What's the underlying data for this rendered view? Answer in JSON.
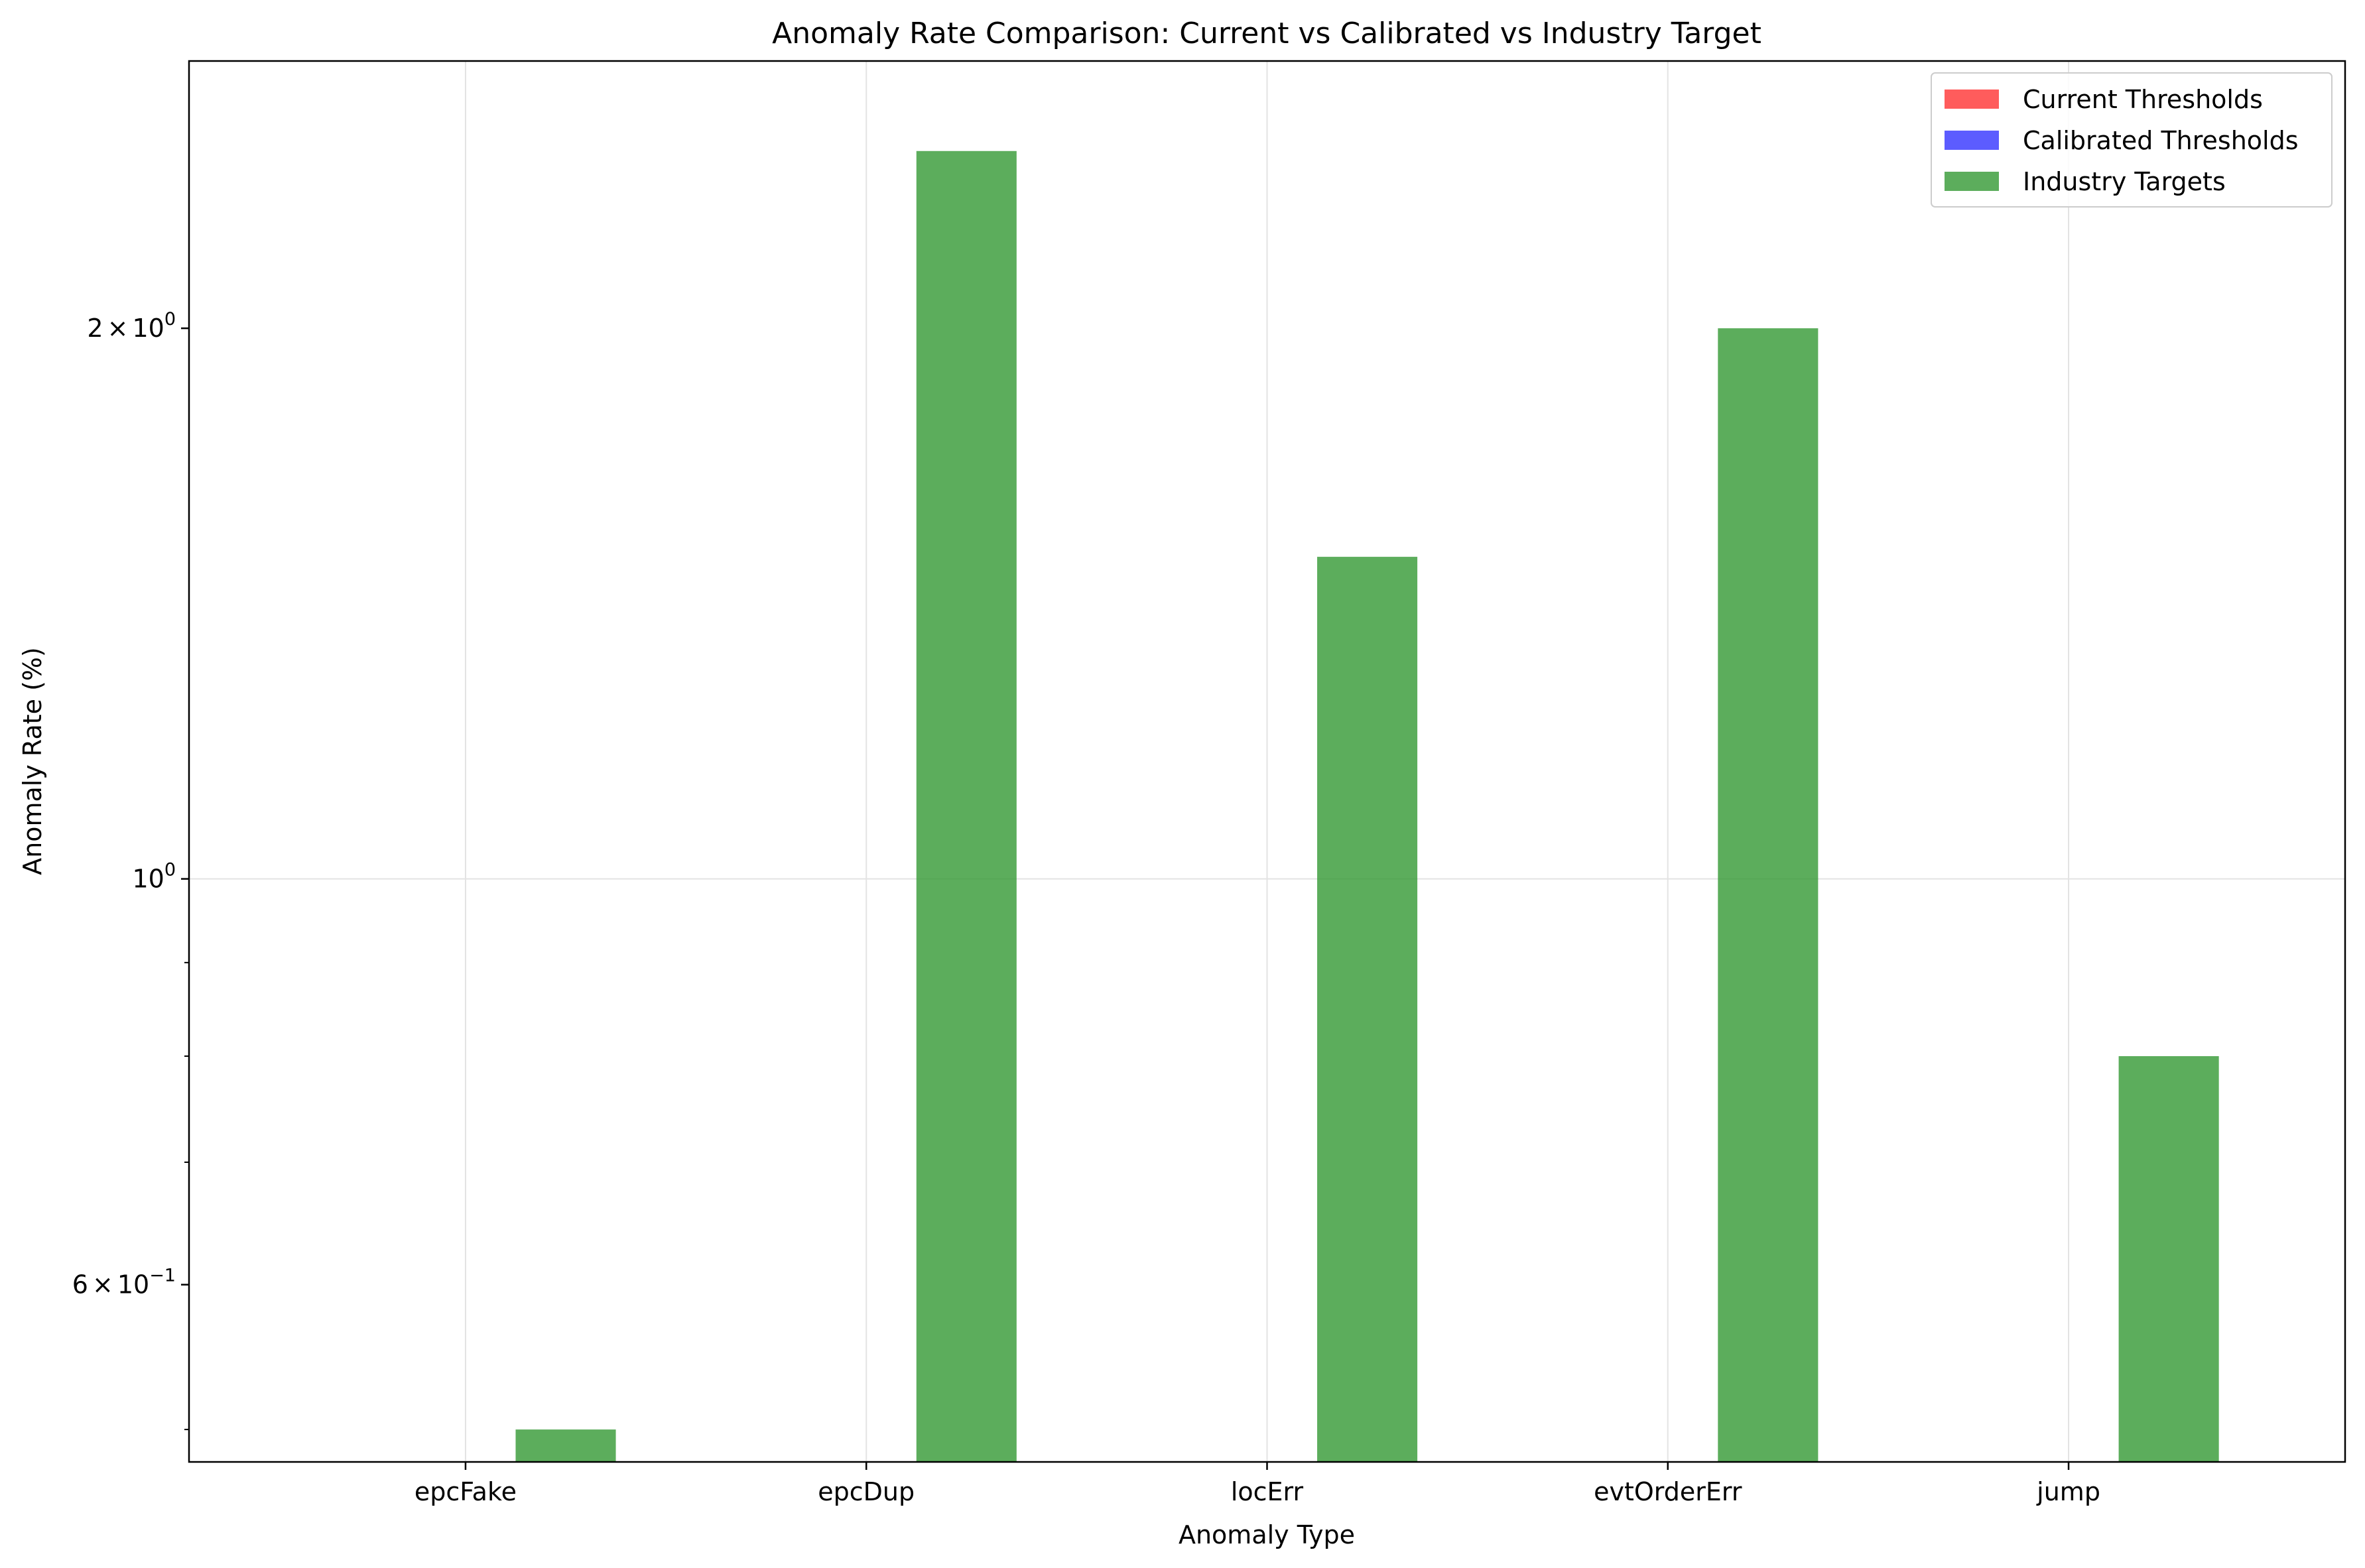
{
  "chart_data": {
    "type": "bar",
    "title": "Anomaly Rate Comparison: Current vs Calibrated vs Industry Target",
    "xlabel": "Anomaly Type",
    "ylabel": "Anomaly Rate (%)",
    "yscale": "log",
    "ylim": [
      0.48,
      2.8
    ],
    "categories": [
      "epcFake",
      "epcDup",
      "locErr",
      "evtOrderErr",
      "jump"
    ],
    "series": [
      {
        "name": "Current Thresholds",
        "color": "#ff3333",
        "values": [
          null,
          null,
          null,
          null,
          null
        ]
      },
      {
        "name": "Calibrated Thresholds",
        "color": "#3333ff",
        "values": [
          null,
          null,
          null,
          null,
          null
        ]
      },
      {
        "name": "Industry Targets",
        "color": "#339933",
        "values": [
          0.5,
          2.5,
          1.5,
          2.0,
          0.8
        ]
      }
    ],
    "yticks": [
      {
        "value": 2.0,
        "mantissa": "2",
        "exp": "0"
      },
      {
        "value": 1.0,
        "mantissa": "",
        "exp": "0"
      },
      {
        "value": 0.6,
        "mantissa": "6",
        "exp": "−1"
      }
    ],
    "grid": true,
    "legend_position": "top-right"
  }
}
